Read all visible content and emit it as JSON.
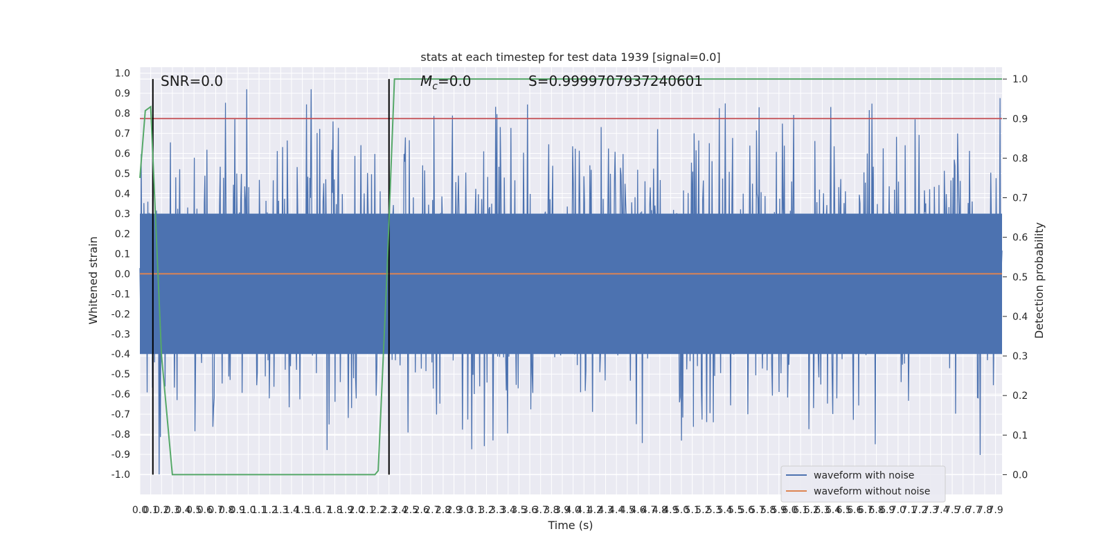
{
  "chart_data": {
    "type": "line",
    "title": "stats at each timestep for test data 1939 [signal=0.0]",
    "xlabel": "Time (s)",
    "ylabel": "Whitened strain",
    "y2label": "Detection probability",
    "xlim": [
      0.0,
      7.96
    ],
    "ylim": [
      -1.1,
      1.03
    ],
    "y2lim": [
      -0.05,
      1.03
    ],
    "x_ticks": [
      "0.0",
      "0.1",
      "0.2",
      "0.3",
      "0.4",
      "0.5",
      "0.6",
      "0.7",
      "0.8",
      "0.9",
      "1.0",
      "1.1",
      "1.2",
      "1.3",
      "1.4",
      "1.5",
      "1.6",
      "1.7",
      "1.8",
      "1.9",
      "2.0",
      "2.1",
      "2.2",
      "2.3",
      "2.4",
      "2.5",
      "2.6",
      "2.7",
      "2.8",
      "2.9",
      "3.0",
      "3.1",
      "3.2",
      "3.3",
      "3.4",
      "3.5",
      "3.6",
      "3.7",
      "3.8",
      "3.9",
      "4.0",
      "4.1",
      "4.2",
      "4.3",
      "4.4",
      "4.5",
      "4.6",
      "4.7",
      "4.8",
      "4.9",
      "5.0",
      "5.1",
      "5.2",
      "5.3",
      "5.4",
      "5.5",
      "5.6",
      "5.7",
      "5.8",
      "5.9",
      "6.0",
      "6.1",
      "6.2",
      "6.3",
      "6.4",
      "6.5",
      "6.6",
      "6.7",
      "6.8",
      "6.9",
      "7.0",
      "7.1",
      "7.2",
      "7.3",
      "7.4",
      "7.5",
      "7.6",
      "7.7",
      "7.8",
      "7.9"
    ],
    "y_ticks": [
      "1.0",
      "0.9",
      "0.8",
      "0.7",
      "0.6",
      "0.5",
      "0.4",
      "0.3",
      "0.2",
      "0.1",
      "0.0",
      "-0.1",
      "-0.2",
      "-0.3",
      "-0.4",
      "-0.5",
      "-0.6",
      "-0.7",
      "-0.8",
      "-0.9",
      "-1.0"
    ],
    "y2_ticks": [
      "1.0",
      "0.9",
      "0.8",
      "0.7",
      "0.6",
      "0.5",
      "0.4",
      "0.3",
      "0.2",
      "0.1",
      "0.0"
    ],
    "grid": true,
    "legend_position": "lower-right",
    "series": [
      {
        "name": "waveform with noise",
        "color": "#4c72b0",
        "style": "dense noise",
        "typical_amplitude": 0.35,
        "max": 0.92,
        "min": -1.0
      },
      {
        "name": "waveform without noise",
        "color": "#dd8452",
        "values_const": 0.0
      },
      {
        "name": "",
        "axis": "right",
        "color": "#55a868",
        "x": [
          0.0,
          0.05,
          0.1,
          0.2,
          0.3,
          1.0,
          2.0,
          2.1,
          2.17,
          2.2,
          2.28,
          2.35,
          2.4,
          3.0,
          5.0,
          7.96
        ],
        "values": [
          0.75,
          0.92,
          0.93,
          0.3,
          0.0,
          0.0,
          0.0,
          0.0,
          0.0,
          0.01,
          0.5,
          1.0,
          1.0,
          1.0,
          1.0,
          1.0
        ]
      }
    ],
    "threshold": {
      "axis": "right",
      "value": 0.9,
      "color": "#c44e52"
    },
    "vlines": [
      0.12,
      2.3
    ],
    "annotations": {
      "snr": "SNR=0.0",
      "mc": "M",
      "mc_sub": "c",
      "mc_val": "=0.0",
      "s": "S=0.9999707937240601"
    }
  }
}
